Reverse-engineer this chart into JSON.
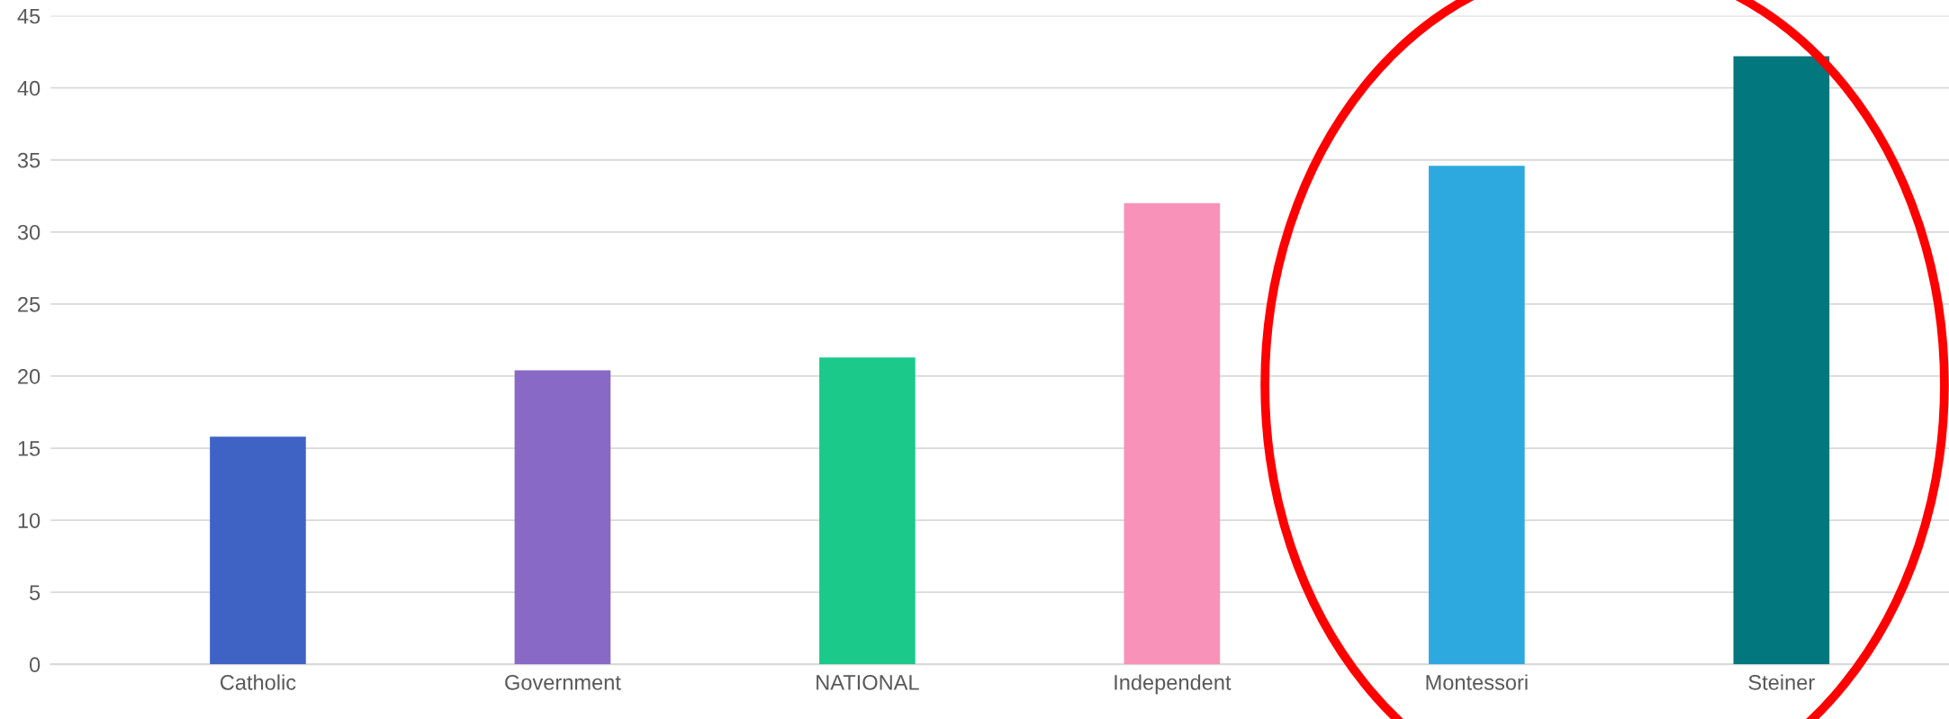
{
  "chart_data": {
    "type": "bar",
    "categories": [
      "Catholic",
      "Government",
      "NATIONAL",
      "Independent",
      "Montessori",
      "Steiner"
    ],
    "values": [
      15.8,
      20.4,
      21.3,
      32.0,
      34.6,
      42.2
    ],
    "colors": [
      "#3f63c5",
      "#8869c6",
      "#1bc98b",
      "#f892b8",
      "#2ea9e0",
      "#02777d"
    ],
    "ylim": [
      0,
      45
    ],
    "yticks": [
      0,
      5,
      10,
      15,
      20,
      25,
      30,
      35,
      40,
      45
    ],
    "grid": "y",
    "legend": false
  }
}
